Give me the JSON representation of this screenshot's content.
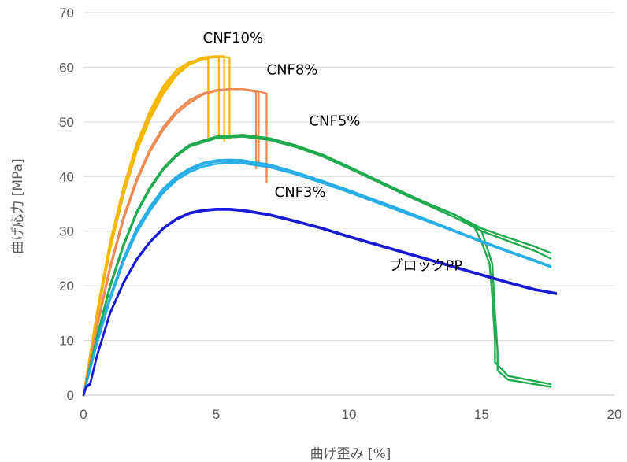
{
  "chart_data": {
    "type": "line",
    "title": "",
    "xlabel": "曲げ歪み [%]",
    "ylabel": "曲げ応力 [MPa]",
    "xlim": [
      0,
      20
    ],
    "ylim": [
      0,
      70
    ],
    "xticks": [
      "0",
      "5",
      "10",
      "15",
      "20"
    ],
    "yticks": [
      "0",
      "10",
      "20",
      "30",
      "40",
      "50",
      "60",
      "70"
    ],
    "grid": "horizontal",
    "legend": "none (labels placed on plot)",
    "series": [
      {
        "name": "CNF10%",
        "color": "#f5b800",
        "specimens": [
          {
            "x": [
              0,
              0.5,
              1.0,
              1.5,
              2.0,
              2.5,
              3.0,
              3.5,
              4.0,
              4.5,
              4.7,
              4.7
            ],
            "y": [
              0,
              15,
              28,
              38,
              46,
              52,
              56.5,
              59.5,
              61,
              61.5,
              61.5,
              47
            ]
          },
          {
            "x": [
              0,
              0.5,
              1.0,
              1.5,
              2.0,
              2.5,
              3.0,
              3.5,
              4.0,
              4.5,
              5.0,
              5.1,
              5.1
            ],
            "y": [
              0,
              14.5,
              27.5,
              37.5,
              45.5,
              51.5,
              56,
              59,
              60.8,
              61.7,
              61.8,
              61.8,
              47
            ]
          },
          {
            "x": [
              0,
              0.5,
              1.0,
              1.5,
              2.0,
              2.5,
              3.0,
              3.5,
              4.0,
              4.5,
              5.0,
              5.3,
              5.3
            ],
            "y": [
              0,
              14,
              27,
              37,
              45,
              51,
              55.5,
              58.8,
              60.8,
              61.8,
              62,
              62,
              46.5
            ]
          },
          {
            "x": [
              0,
              0.5,
              1.0,
              1.5,
              2.0,
              2.5,
              3.0,
              3.5,
              4.0,
              4.5,
              5.0,
              5.5,
              5.5
            ],
            "y": [
              0,
              14,
              26.5,
              36.5,
              44.5,
              50.5,
              55,
              58.5,
              60.5,
              61.5,
              61.9,
              61.8,
              47
            ]
          }
        ]
      },
      {
        "name": "CNF8%",
        "color": "#ed8b55",
        "specimens": [
          {
            "x": [
              0,
              0.5,
              1.0,
              1.5,
              2.0,
              2.5,
              3.0,
              3.5,
              4.0,
              4.5,
              5.0,
              5.5,
              6.0,
              6.5,
              6.5
            ],
            "y": [
              0,
              12.5,
              23.5,
              32.5,
              39.5,
              45,
              49,
              52,
              54,
              55.2,
              55.8,
              56,
              56,
              55.5,
              41.5
            ]
          },
          {
            "x": [
              0,
              0.5,
              1.0,
              1.5,
              2.0,
              2.5,
              3.0,
              3.5,
              4.0,
              4.5,
              5.0,
              5.5,
              6.0,
              6.5,
              6.6,
              6.6
            ],
            "y": [
              0,
              12.5,
              23.5,
              32.5,
              39.5,
              45,
              49,
              52,
              54,
              55.2,
              55.8,
              56,
              56,
              55.6,
              55.5,
              42
            ]
          },
          {
            "x": [
              0,
              0.5,
              1.0,
              1.5,
              2.0,
              2.5,
              3.0,
              3.5,
              4.0,
              4.5,
              5.0,
              5.5,
              6.0,
              6.5,
              6.9,
              6.9
            ],
            "y": [
              0,
              12,
              23,
              32,
              39,
              44.5,
              48.5,
              51.5,
              53.5,
              55,
              55.7,
              56,
              56,
              55.7,
              55.2,
              39
            ]
          }
        ]
      },
      {
        "name": "CNF5%",
        "color": "#22aa50",
        "specimens": [
          {
            "x": [
              0,
              0.5,
              1.0,
              1.5,
              2.0,
              2.5,
              3.0,
              3.5,
              4.0,
              5.0,
              6.0,
              7.0,
              8.0,
              9.0,
              10.0,
              11.0,
              12.0,
              13.0,
              14.0,
              14.7,
              15.0,
              15.3,
              15.4,
              15.5,
              15.5,
              16.0,
              17.6
            ],
            "y": [
              0,
              10.5,
              20,
              27.5,
              33.5,
              38,
              41.5,
              44,
              45.8,
              47.3,
              47.6,
              47,
              45.7,
              44,
              41.8,
              39.5,
              37.2,
              35,
              33,
              31,
              28,
              24,
              18,
              10,
              6,
              3.5,
              2
            ]
          },
          {
            "x": [
              0,
              0.5,
              1.0,
              1.5,
              2.0,
              2.5,
              3.0,
              3.5,
              4.0,
              5.0,
              6.0,
              7.0,
              8.0,
              9.0,
              10.0,
              11.0,
              12.0,
              13.0,
              14.0,
              15.0,
              15.4,
              15.5,
              15.6,
              15.6,
              16.0,
              17.6
            ],
            "y": [
              0,
              10.5,
              20,
              27.5,
              33.5,
              38,
              41.5,
              44,
              45.8,
              47.3,
              47.6,
              47,
              45.7,
              44,
              41.8,
              39.5,
              37.2,
              35,
              33,
              30,
              24,
              15,
              8,
              4.5,
              2.8,
              1.5
            ]
          },
          {
            "x": [
              0,
              0.5,
              1.0,
              1.5,
              2.0,
              2.5,
              3.0,
              3.5,
              4.0,
              5.0,
              6.0,
              7.0,
              8.0,
              9.0,
              10.0,
              11.0,
              12.0,
              13.0,
              14.0,
              15.0,
              16.0,
              17.0,
              17.6
            ],
            "y": [
              0,
              10.5,
              20,
              27.5,
              33.5,
              38,
              41.5,
              44,
              45.8,
              47.3,
              47.6,
              47,
              45.7,
              44,
              41.8,
              39.5,
              37.2,
              35,
              33,
              30.5,
              28.8,
              27.2,
              26
            ]
          },
          {
            "x": [
              0,
              0.5,
              1.0,
              1.5,
              2.0,
              2.5,
              3.0,
              3.5,
              4.0,
              5.0,
              6.0,
              7.0,
              8.0,
              9.0,
              10.0,
              11.0,
              12.0,
              13.0,
              14.0,
              15.0,
              16.0,
              17.0,
              17.6
            ],
            "y": [
              0,
              10.3,
              19.7,
              27.2,
              33.2,
              37.7,
              41.2,
              43.7,
              45.5,
              47,
              47.3,
              46.7,
              45.4,
              43.7,
              41.5,
              39.2,
              36.9,
              34.7,
              32.5,
              30,
              28.2,
              26.4,
              25
            ]
          }
        ]
      },
      {
        "name": "CNF3%",
        "color": "#29aee6",
        "specimens": [
          {
            "x": [
              0,
              0.5,
              1.0,
              1.5,
              2.0,
              2.5,
              3.0,
              3.5,
              4.0,
              4.5,
              5.0,
              5.5,
              6.0,
              7.0,
              8.0,
              9.0,
              10.0,
              11.0,
              12.0,
              13.0,
              14.0,
              15.0,
              16.0,
              17.0,
              17.6
            ],
            "y": [
              0,
              9.5,
              18,
              25,
              30.5,
              34.5,
              37.8,
              40,
              41.5,
              42.5,
              43,
              43.1,
              43,
              42.2,
              40.8,
              39.2,
              37.5,
              35.7,
              33.9,
              32,
              30.1,
              28.2,
              26.4,
              24.7,
              23.6
            ]
          },
          {
            "x": [
              0,
              0.5,
              1.0,
              1.5,
              2.0,
              2.5,
              3.0,
              3.5,
              4.0,
              4.5,
              5.0,
              5.5,
              6.0,
              7.0,
              8.0,
              9.0,
              10.0,
              11.0,
              12.0,
              13.0,
              14.0,
              15.0,
              16.0,
              17.0,
              17.6
            ],
            "y": [
              0,
              9.4,
              17.8,
              24.8,
              30.2,
              34.2,
              37.5,
              39.7,
              41.2,
              42.2,
              42.7,
              42.8,
              42.7,
              41.9,
              40.6,
              39,
              37.3,
              35.5,
              33.7,
              31.8,
              30,
              28.1,
              26.3,
              24.6,
              23.5
            ]
          },
          {
            "x": [
              0,
              0.5,
              1.0,
              1.5,
              2.0,
              2.5,
              3.0,
              3.5,
              4.0,
              4.5,
              5.0,
              5.5,
              6.0,
              7.0,
              8.0,
              9.0,
              10.0,
              11.0,
              12.0,
              13.0,
              14.0,
              15.0,
              16.0,
              17.0,
              17.6
            ],
            "y": [
              0,
              9.2,
              17.4,
              24.3,
              29.7,
              33.7,
              37,
              39.3,
              40.8,
              41.8,
              42.3,
              42.5,
              42.4,
              41.7,
              40.4,
              38.8,
              37.1,
              35.3,
              33.5,
              31.7,
              29.9,
              28,
              26.2,
              24.5,
              23.4
            ]
          }
        ]
      },
      {
        "name": "ブロックPP",
        "color": "#1a1ad4",
        "specimens": [
          {
            "x": [
              0,
              0.1,
              0.25,
              0.5,
              1.0,
              1.5,
              2.0,
              2.5,
              3.0,
              3.5,
              4.0,
              4.5,
              5.0,
              5.5,
              6.0,
              7.0,
              8.0,
              9.0,
              10.0,
              11.0,
              12.0,
              13.0,
              14.0,
              15.0,
              16.0,
              17.0,
              17.8
            ],
            "y": [
              0,
              1.5,
              2,
              7,
              15,
              20.5,
              24.8,
              28,
              30.5,
              32.2,
              33.3,
              33.8,
              34,
              34,
              33.8,
              33,
              31.8,
              30.5,
              29,
              27.6,
              26.2,
              24.8,
              23.4,
              22,
              20.6,
              19.3,
              18.5
            ]
          },
          {
            "x": [
              0,
              0.1,
              0.25,
              0.5,
              1.0,
              1.5,
              2.0,
              2.5,
              3.0,
              3.5,
              4.0,
              4.5,
              5.0,
              5.5,
              6.0,
              7.0,
              8.0,
              9.0,
              10.0,
              11.0,
              12.0,
              13.0,
              14.0,
              15.0,
              16.0,
              17.0,
              17.8
            ],
            "y": [
              0,
              1.6,
              2.1,
              7.1,
              15.1,
              20.6,
              24.9,
              28.1,
              30.6,
              32.3,
              33.4,
              33.9,
              34.1,
              34.1,
              33.9,
              33.1,
              31.9,
              30.6,
              29.1,
              27.7,
              26.3,
              24.9,
              23.5,
              22.1,
              20.7,
              19.4,
              18.7
            ]
          },
          {
            "x": [
              0,
              0.1,
              0.25,
              0.5,
              1.0,
              1.5,
              2.0,
              2.5,
              3.0,
              3.5,
              4.0,
              4.5,
              5.0,
              5.5,
              6.0,
              7.0,
              8.0,
              9.0,
              10.0,
              11.0,
              12.0,
              13.0,
              14.0,
              15.0,
              16.0,
              17.0,
              17.8
            ],
            "y": [
              0,
              1.4,
              1.9,
              6.9,
              14.9,
              20.4,
              24.7,
              27.9,
              30.4,
              32.1,
              33.2,
              33.7,
              33.9,
              33.9,
              33.7,
              32.9,
              31.7,
              30.4,
              28.9,
              27.5,
              26.1,
              24.7,
              23.3,
              21.9,
              20.5,
              19.2,
              18.6
            ]
          }
        ]
      }
    ],
    "annotations": [
      {
        "text": "CNF10%",
        "x": 4.5,
        "y": 64.5
      },
      {
        "text": "CNF8%",
        "x": 6.9,
        "y": 58.7
      },
      {
        "text": "CNF5%",
        "x": 8.5,
        "y": 49.3
      },
      {
        "text": "CNF3%",
        "x": 7.2,
        "y": 36.3
      },
      {
        "text": "ブロックPP",
        "x": 11.5,
        "y": 22.8
      }
    ]
  }
}
